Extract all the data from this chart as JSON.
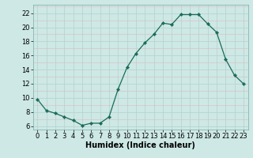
{
  "x": [
    0,
    1,
    2,
    3,
    4,
    5,
    6,
    7,
    8,
    9,
    10,
    11,
    12,
    13,
    14,
    15,
    16,
    17,
    18,
    19,
    20,
    21,
    22,
    23
  ],
  "y": [
    9.8,
    8.2,
    7.8,
    7.3,
    6.8,
    6.1,
    6.4,
    6.4,
    7.3,
    11.2,
    14.3,
    16.3,
    17.8,
    19.0,
    20.6,
    20.4,
    21.8,
    21.8,
    21.8,
    20.5,
    19.3,
    15.5,
    13.2,
    12.0
  ],
  "line_color": "#1a6b5a",
  "marker_color": "#1a6b5a",
  "bg_color": "#cde8e5",
  "grid_major_color": "#b8d4d1",
  "grid_minor_color": "#dbbcbc",
  "xlabel": "Humidex (Indice chaleur)",
  "xlim": [
    -0.5,
    23.5
  ],
  "ylim": [
    5.5,
    23.2
  ],
  "yticks": [
    6,
    8,
    10,
    12,
    14,
    16,
    18,
    20,
    22
  ],
  "xticks": [
    0,
    1,
    2,
    3,
    4,
    5,
    6,
    7,
    8,
    9,
    10,
    11,
    12,
    13,
    14,
    15,
    16,
    17,
    18,
    19,
    20,
    21,
    22,
    23
  ],
  "xlabel_fontsize": 7,
  "tick_fontsize": 6
}
